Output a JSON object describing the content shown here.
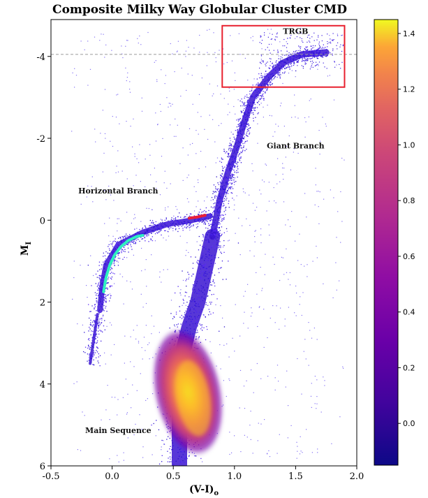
{
  "chart_data": {
    "type": "scatter",
    "title": "Composite Milky Way Globular Cluster CMD",
    "xlabel": "(V-I)",
    "xlabel_sub": "o",
    "ylabel": "M",
    "ylabel_sub": "I",
    "xlim": [
      -0.5,
      2.0
    ],
    "ylim": [
      6,
      -4.9
    ],
    "y_inverted": true,
    "xticks": [
      "-0.5",
      "0.0",
      "0.5",
      "1.0",
      "1.5",
      "2.0"
    ],
    "yticks": [
      "-4",
      "-2",
      "0",
      "2",
      "4",
      "6"
    ],
    "grid": false,
    "colorbar": {
      "colormap": "plasma",
      "range": [
        -0.15,
        1.45
      ],
      "ticks": [
        "0.0",
        "0.2",
        "0.4",
        "0.6",
        "0.8",
        "1.0",
        "1.2",
        "1.4"
      ]
    },
    "trgb_line": {
      "y": -4.05,
      "style": "dashed",
      "color": "#9a9a9a"
    },
    "trgb_box": {
      "x": [
        0.9,
        1.9
      ],
      "y": [
        -3.25,
        -4.75
      ],
      "color": "#e8202e"
    },
    "hb_fit": {
      "color": "#2ef0c0",
      "points": [
        [
          -0.07,
          1.75
        ],
        [
          -0.05,
          1.4
        ],
        [
          -0.02,
          1.1
        ],
        [
          0.02,
          0.85
        ],
        [
          0.07,
          0.65
        ],
        [
          0.13,
          0.5
        ],
        [
          0.2,
          0.4
        ],
        [
          0.25,
          0.37
        ]
      ]
    },
    "rhb_fit": {
      "color": "#e8203a",
      "points": [
        [
          0.63,
          -0.05
        ],
        [
          0.7,
          -0.08
        ],
        [
          0.76,
          -0.12
        ]
      ]
    },
    "sequences": {
      "main_sequence": [
        [
          0.55,
          6.0
        ],
        [
          0.55,
          5.0
        ],
        [
          0.55,
          4.0
        ],
        [
          0.58,
          3.2
        ],
        [
          0.63,
          2.6
        ],
        [
          0.7,
          2.0
        ],
        [
          0.76,
          1.2
        ],
        [
          0.82,
          0.4
        ]
      ],
      "giant_branch": [
        [
          0.82,
          0.4
        ],
        [
          0.88,
          -0.5
        ],
        [
          0.95,
          -1.2
        ],
        [
          1.02,
          -1.8
        ],
        [
          1.08,
          -2.4
        ],
        [
          1.15,
          -3.0
        ],
        [
          1.28,
          -3.5
        ],
        [
          1.4,
          -3.85
        ],
        [
          1.55,
          -4.05
        ],
        [
          1.75,
          -4.1
        ]
      ],
      "horizontal_branch": [
        [
          -0.1,
          2.2
        ],
        [
          -0.08,
          1.6
        ],
        [
          -0.05,
          1.1
        ],
        [
          0.05,
          0.6
        ],
        [
          0.25,
          0.3
        ],
        [
          0.45,
          0.1
        ],
        [
          0.65,
          0.0
        ],
        [
          0.8,
          -0.1
        ]
      ],
      "blue_hook": [
        [
          -0.12,
          2.3
        ],
        [
          -0.15,
          2.9
        ],
        [
          -0.18,
          3.5
        ]
      ],
      "turnoff_core": {
        "center": [
          0.62,
          4.2
        ],
        "peak_density": 1.4
      }
    },
    "annotations": [
      {
        "text": "TRGB",
        "x": 1.5,
        "y": -4.55,
        "color": "#111111"
      },
      {
        "text": "Giant Branch",
        "x": 1.5,
        "y": -1.75,
        "color": "#111111"
      },
      {
        "text": "Horizontal Branch",
        "x": 0.05,
        "y": -0.65,
        "color": "#111111"
      },
      {
        "text": "Main Sequence",
        "x": 0.05,
        "y": 5.2,
        "color": "#2ef0c0"
      }
    ]
  }
}
